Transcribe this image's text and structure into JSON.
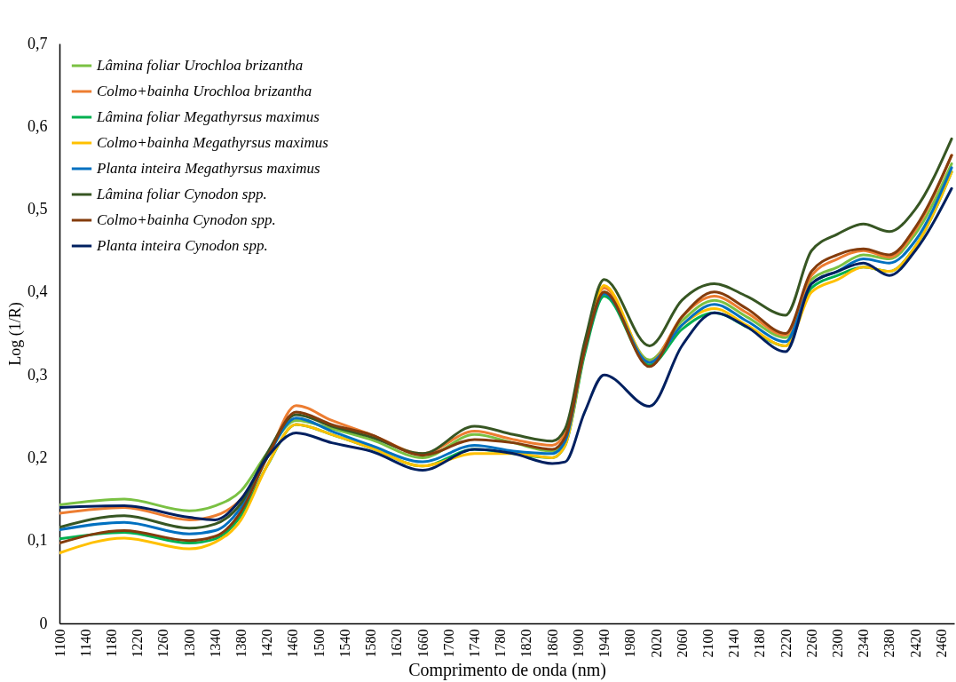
{
  "chart_data": {
    "type": "line",
    "xlabel": "Comprimento de onda (nm)",
    "ylabel": "Log (1/R)",
    "legend": "top left",
    "grid": false,
    "x": [
      1100,
      1200,
      1300,
      1340,
      1380,
      1420,
      1465,
      1520,
      1580,
      1660,
      1740,
      1800,
      1860,
      1880,
      1910,
      1940,
      2010,
      2060,
      2110,
      2160,
      2220,
      2260,
      2300,
      2340,
      2380,
      2420,
      2476
    ],
    "xlim": [
      1100,
      2480
    ],
    "xticks": [
      1100,
      1140,
      1180,
      1220,
      1260,
      1300,
      1340,
      1380,
      1420,
      1460,
      1500,
      1540,
      1580,
      1620,
      1660,
      1700,
      1740,
      1780,
      1820,
      1860,
      1900,
      1940,
      1980,
      2020,
      2060,
      2100,
      2140,
      2180,
      2220,
      2260,
      2300,
      2340,
      2380,
      2420,
      2460
    ],
    "ylim": [
      0,
      0.7
    ],
    "yticks": [
      0,
      {
        "value": 0.1,
        "label": "0,1"
      },
      {
        "value": 0.2,
        "label": "0,2"
      },
      {
        "value": 0.3,
        "label": "0,3"
      },
      {
        "value": 0.4,
        "label": "0,4"
      },
      {
        "value": 0.5,
        "label": "0,5"
      },
      {
        "value": 0.6,
        "label": "0,6"
      },
      {
        "value": 0.7,
        "label": "0,7"
      }
    ],
    "series": [
      {
        "name": "Lâmina foliar Urochloa brizantha",
        "color": "#7ac143",
        "values": [
          0.143,
          0.15,
          0.136,
          0.142,
          0.16,
          0.205,
          0.245,
          0.235,
          0.222,
          0.2,
          0.228,
          0.218,
          0.208,
          0.225,
          0.33,
          0.4,
          0.318,
          0.365,
          0.39,
          0.37,
          0.345,
          0.415,
          0.43,
          0.445,
          0.44,
          0.47,
          0.555
        ]
      },
      {
        "name": "Colmo+bainha Urochloa brizantha",
        "color": "#ed7d31",
        "values": [
          0.133,
          0.14,
          0.125,
          0.13,
          0.15,
          0.2,
          0.263,
          0.245,
          0.228,
          0.205,
          0.232,
          0.222,
          0.215,
          0.23,
          0.335,
          0.405,
          0.315,
          0.37,
          0.395,
          0.375,
          0.348,
          0.42,
          0.44,
          0.45,
          0.442,
          0.475,
          0.565
        ]
      },
      {
        "name": "Lâmina foliar Megathyrsus maximus",
        "color": "#00b050",
        "values": [
          0.102,
          0.11,
          0.097,
          0.102,
          0.13,
          0.19,
          0.24,
          0.228,
          0.212,
          0.19,
          0.21,
          0.205,
          0.2,
          0.215,
          0.325,
          0.395,
          0.312,
          0.355,
          0.375,
          0.358,
          0.335,
          0.405,
          0.42,
          0.43,
          0.425,
          0.455,
          0.545
        ]
      },
      {
        "name": "Colmo+bainha Megathyrsus maximus",
        "color": "#ffc000",
        "values": [
          0.085,
          0.103,
          0.09,
          0.098,
          0.125,
          0.19,
          0.24,
          0.228,
          0.212,
          0.19,
          0.205,
          0.205,
          0.2,
          0.215,
          0.33,
          0.408,
          0.315,
          0.36,
          0.38,
          0.36,
          0.335,
          0.4,
          0.415,
          0.43,
          0.425,
          0.455,
          0.545
        ]
      },
      {
        "name": "Planta inteira Megathyrsus maximus",
        "color": "#0070c0",
        "values": [
          0.113,
          0.122,
          0.108,
          0.112,
          0.14,
          0.2,
          0.248,
          0.232,
          0.215,
          0.195,
          0.215,
          0.208,
          0.205,
          0.22,
          0.33,
          0.398,
          0.315,
          0.36,
          0.385,
          0.365,
          0.34,
          0.41,
          0.425,
          0.44,
          0.435,
          0.462,
          0.55
        ]
      },
      {
        "name": "Lâmina foliar Cynodon spp.",
        "color": "#375623",
        "values": [
          0.116,
          0.13,
          0.115,
          0.12,
          0.145,
          0.205,
          0.252,
          0.238,
          0.225,
          0.205,
          0.238,
          0.228,
          0.22,
          0.235,
          0.34,
          0.415,
          0.335,
          0.39,
          0.41,
          0.395,
          0.372,
          0.45,
          0.47,
          0.482,
          0.473,
          0.5,
          0.585
        ]
      },
      {
        "name": "Colmo+bainha Cynodon spp.",
        "color": "#843c0c",
        "values": [
          0.097,
          0.112,
          0.1,
          0.105,
          0.135,
          0.2,
          0.255,
          0.24,
          0.228,
          0.203,
          0.222,
          0.218,
          0.21,
          0.225,
          0.33,
          0.4,
          0.31,
          0.37,
          0.4,
          0.38,
          0.35,
          0.425,
          0.445,
          0.452,
          0.445,
          0.478,
          0.565
        ]
      },
      {
        "name": "Planta inteira Cynodon spp.",
        "color": "#002060",
        "values": [
          0.14,
          0.142,
          0.128,
          0.125,
          0.15,
          0.2,
          0.23,
          0.218,
          0.208,
          0.185,
          0.21,
          0.205,
          0.193,
          0.195,
          0.255,
          0.3,
          0.262,
          0.335,
          0.375,
          0.358,
          0.328,
          0.41,
          0.425,
          0.435,
          0.42,
          0.45,
          0.525
        ]
      }
    ]
  }
}
